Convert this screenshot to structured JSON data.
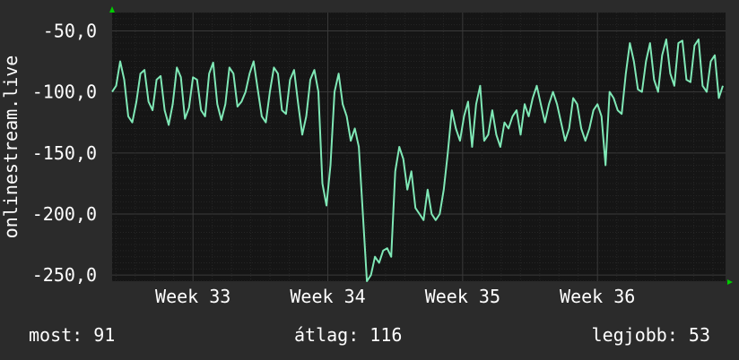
{
  "chart_data": {
    "type": "line",
    "title": "",
    "ylabel": "onlinestream.live",
    "xlabel": "",
    "ylim": [
      -255,
      -35
    ],
    "yticks": [
      -50,
      -100,
      -150,
      -200,
      -250
    ],
    "ytick_labels": [
      "-50,0",
      "-100,0",
      "-150,0",
      "-200,0",
      "-250,0"
    ],
    "xlim": [
      32.4,
      36.95
    ],
    "xticks": [
      33,
      34,
      35,
      36
    ],
    "xtick_labels": [
      "Week 33",
      "Week 34",
      "Week 35",
      "Week 36"
    ],
    "grid": true,
    "colors": {
      "background": "#2b2b2b",
      "plot": "#151515",
      "grid_major": "#3a3a3a",
      "grid_minor": "#262626",
      "line": "#7fe8b6",
      "axis_arrow": "#00cc00"
    },
    "series": [
      {
        "values": [
          [
            32.4,
            -100
          ],
          [
            32.43,
            -95
          ],
          [
            32.46,
            -75
          ],
          [
            32.49,
            -90
          ],
          [
            32.52,
            -120
          ],
          [
            32.55,
            -125
          ],
          [
            32.58,
            -108
          ],
          [
            32.61,
            -85
          ],
          [
            32.64,
            -82
          ],
          [
            32.67,
            -108
          ],
          [
            32.7,
            -115
          ],
          [
            32.73,
            -90
          ],
          [
            32.76,
            -87
          ],
          [
            32.79,
            -115
          ],
          [
            32.82,
            -127
          ],
          [
            32.85,
            -110
          ],
          [
            32.88,
            -80
          ],
          [
            32.91,
            -88
          ],
          [
            32.94,
            -122
          ],
          [
            32.97,
            -113
          ],
          [
            33.0,
            -88
          ],
          [
            33.03,
            -90
          ],
          [
            33.06,
            -115
          ],
          [
            33.09,
            -120
          ],
          [
            33.12,
            -85
          ],
          [
            33.15,
            -76
          ],
          [
            33.18,
            -110
          ],
          [
            33.21,
            -123
          ],
          [
            33.24,
            -110
          ],
          [
            33.27,
            -80
          ],
          [
            33.3,
            -85
          ],
          [
            33.33,
            -112
          ],
          [
            33.36,
            -108
          ],
          [
            33.39,
            -100
          ],
          [
            33.42,
            -85
          ],
          [
            33.45,
            -75
          ],
          [
            33.48,
            -98
          ],
          [
            33.51,
            -120
          ],
          [
            33.54,
            -125
          ],
          [
            33.57,
            -100
          ],
          [
            33.6,
            -80
          ],
          [
            33.63,
            -85
          ],
          [
            33.66,
            -115
          ],
          [
            33.69,
            -118
          ],
          [
            33.72,
            -90
          ],
          [
            33.75,
            -82
          ],
          [
            33.78,
            -110
          ],
          [
            33.81,
            -135
          ],
          [
            33.84,
            -120
          ],
          [
            33.87,
            -90
          ],
          [
            33.9,
            -82
          ],
          [
            33.93,
            -100
          ],
          [
            33.96,
            -175
          ],
          [
            33.99,
            -193
          ],
          [
            34.02,
            -160
          ],
          [
            34.05,
            -100
          ],
          [
            34.08,
            -85
          ],
          [
            34.11,
            -110
          ],
          [
            34.14,
            -120
          ],
          [
            34.17,
            -140
          ],
          [
            34.2,
            -130
          ],
          [
            34.23,
            -145
          ],
          [
            34.26,
            -200
          ],
          [
            34.29,
            -255
          ],
          [
            34.32,
            -250
          ],
          [
            34.35,
            -235
          ],
          [
            34.38,
            -240
          ],
          [
            34.41,
            -230
          ],
          [
            34.44,
            -228
          ],
          [
            34.47,
            -235
          ],
          [
            34.5,
            -165
          ],
          [
            34.53,
            -145
          ],
          [
            34.56,
            -155
          ],
          [
            34.59,
            -180
          ],
          [
            34.62,
            -165
          ],
          [
            34.65,
            -195
          ],
          [
            34.68,
            -200
          ],
          [
            34.71,
            -205
          ],
          [
            34.74,
            -180
          ],
          [
            34.77,
            -200
          ],
          [
            34.8,
            -205
          ],
          [
            34.83,
            -200
          ],
          [
            34.86,
            -180
          ],
          [
            34.89,
            -150
          ],
          [
            34.92,
            -115
          ],
          [
            34.95,
            -130
          ],
          [
            34.98,
            -140
          ],
          [
            35.01,
            -120
          ],
          [
            35.04,
            -108
          ],
          [
            35.07,
            -145
          ],
          [
            35.1,
            -110
          ],
          [
            35.13,
            -95
          ],
          [
            35.16,
            -140
          ],
          [
            35.19,
            -135
          ],
          [
            35.22,
            -115
          ],
          [
            35.25,
            -135
          ],
          [
            35.28,
            -145
          ],
          [
            35.31,
            -125
          ],
          [
            35.34,
            -130
          ],
          [
            35.37,
            -120
          ],
          [
            35.4,
            -115
          ],
          [
            35.43,
            -135
          ],
          [
            35.46,
            -110
          ],
          [
            35.49,
            -120
          ],
          [
            35.52,
            -105
          ],
          [
            35.55,
            -95
          ],
          [
            35.58,
            -110
          ],
          [
            35.61,
            -125
          ],
          [
            35.64,
            -110
          ],
          [
            35.67,
            -100
          ],
          [
            35.7,
            -110
          ],
          [
            35.73,
            -125
          ],
          [
            35.76,
            -140
          ],
          [
            35.79,
            -130
          ],
          [
            35.82,
            -105
          ],
          [
            35.85,
            -110
          ],
          [
            35.88,
            -130
          ],
          [
            35.91,
            -140
          ],
          [
            35.94,
            -130
          ],
          [
            35.97,
            -115
          ],
          [
            36.0,
            -110
          ],
          [
            36.03,
            -120
          ],
          [
            36.06,
            -160
          ],
          [
            36.09,
            -100
          ],
          [
            36.12,
            -105
          ],
          [
            36.15,
            -115
          ],
          [
            36.18,
            -118
          ],
          [
            36.21,
            -85
          ],
          [
            36.24,
            -60
          ],
          [
            36.27,
            -75
          ],
          [
            36.3,
            -98
          ],
          [
            36.33,
            -100
          ],
          [
            36.36,
            -75
          ],
          [
            36.39,
            -60
          ],
          [
            36.42,
            -90
          ],
          [
            36.45,
            -100
          ],
          [
            36.48,
            -70
          ],
          [
            36.51,
            -57
          ],
          [
            36.54,
            -85
          ],
          [
            36.57,
            -95
          ],
          [
            36.6,
            -60
          ],
          [
            36.63,
            -58
          ],
          [
            36.66,
            -90
          ],
          [
            36.69,
            -92
          ],
          [
            36.72,
            -62
          ],
          [
            36.75,
            -57
          ],
          [
            36.78,
            -95
          ],
          [
            36.81,
            -100
          ],
          [
            36.84,
            -75
          ],
          [
            36.87,
            -70
          ],
          [
            36.9,
            -105
          ],
          [
            36.93,
            -95
          ]
        ]
      }
    ]
  },
  "footer": {
    "now": "most: 91",
    "avg": "átlag: 116",
    "best": "legjobb: 53"
  }
}
